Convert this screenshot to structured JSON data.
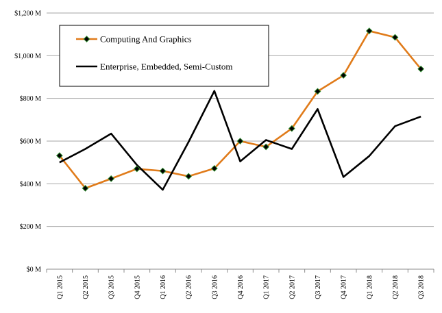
{
  "chart_data": {
    "type": "line",
    "categories": [
      "Q1 2015",
      "Q2 2015",
      "Q3 2015",
      "Q4 2015",
      "Q1 2016",
      "Q2 2016",
      "Q3 2016",
      "Q4 2016",
      "Q1 2017",
      "Q2 2017",
      "Q3 2017",
      "Q4 2017",
      "Q1 2018",
      "Q2 2018",
      "Q3 2018"
    ],
    "y_tick_labels": [
      "$0 M",
      "$200 M",
      "$400 M",
      "$600 M",
      "$800 M",
      "$1,000 M",
      "$1,200 M"
    ],
    "ylim": [
      0,
      1200
    ],
    "grid": "horizontal",
    "legend_position": "top-left",
    "series": [
      {
        "name": "Computing And Graphics",
        "color": "#E07B1A",
        "marker": "diamond",
        "marker_color": "#000000",
        "marker_edge": "#2E8B2E",
        "values": [
          532,
          379,
          424,
          470,
          460,
          435,
          472,
          600,
          573,
          659,
          833,
          908,
          1116,
          1086,
          938
        ]
      },
      {
        "name": "Enterprise, Embedded, Semi-Custom",
        "color": "#000000",
        "marker": "none",
        "values": [
          500,
          563,
          635,
          488,
          372,
          596,
          835,
          505,
          605,
          563,
          750,
          432,
          530,
          670,
          715
        ]
      }
    ],
    "title": "",
    "xlabel": "",
    "ylabel": ""
  }
}
